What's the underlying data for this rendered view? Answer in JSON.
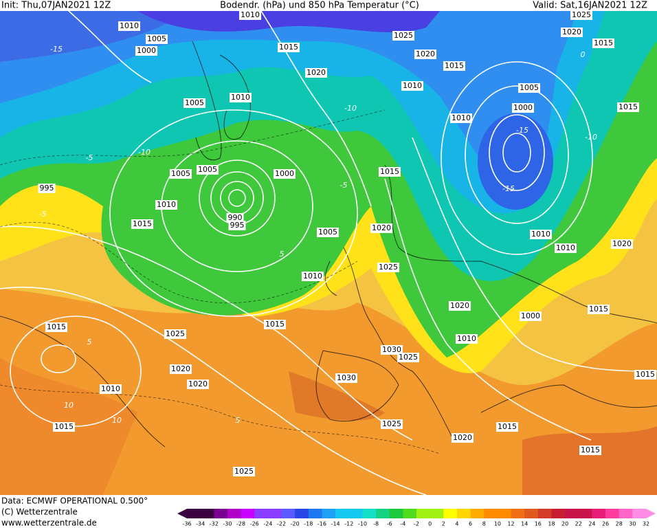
{
  "header": {
    "init": "Init: Thu,07JAN2021 12Z",
    "title": "Bodendr. (hPa) und 850 hPa Temperatur (°C)",
    "valid": "Valid: Sat,16JAN2021 12Z"
  },
  "footer": {
    "source": "Data: ECMWF OPERATIONAL 0.500°",
    "copyright": "(C) Wetterzentrale",
    "url": "www.wetterzentrale.de"
  },
  "colorbar": {
    "labels": [
      -36,
      -34,
      -32,
      -30,
      -28,
      -26,
      -24,
      -22,
      -20,
      -18,
      -16,
      -14,
      -12,
      -10,
      -8,
      -6,
      -4,
      -2,
      0,
      2,
      4,
      6,
      8,
      10,
      12,
      14,
      16,
      18,
      20,
      22,
      24,
      26,
      28,
      30,
      32
    ]
  },
  "isobar_labels": [
    "1010",
    "1005",
    "1000",
    "1010",
    "1015",
    "1020",
    "1005",
    "1010",
    "1005",
    "1005",
    "1000",
    "1010",
    "1015",
    "990",
    "995",
    "1005",
    "1010",
    "1015",
    "1025",
    "1020",
    "1020",
    "1010",
    "1015",
    "1015",
    "1025",
    "1030",
    "1030",
    "1025",
    "1025",
    "1020",
    "1015",
    "1010",
    "1020",
    "1025",
    "1020",
    "1015",
    "1010",
    "1010",
    "1015",
    "1020",
    "1025",
    "1025",
    "1020",
    "1015",
    "1005",
    "1000",
    "1015",
    "1010",
    "1010",
    "1020",
    "1015",
    "1000",
    "1015",
    "1015",
    "995"
  ],
  "isotherm_labels": [
    "-15",
    "-10",
    "-10",
    "-5",
    "-5",
    "5",
    "5",
    "10",
    "10",
    "-15",
    "-15",
    "-10",
    "5",
    "-5",
    "0"
  ]
}
